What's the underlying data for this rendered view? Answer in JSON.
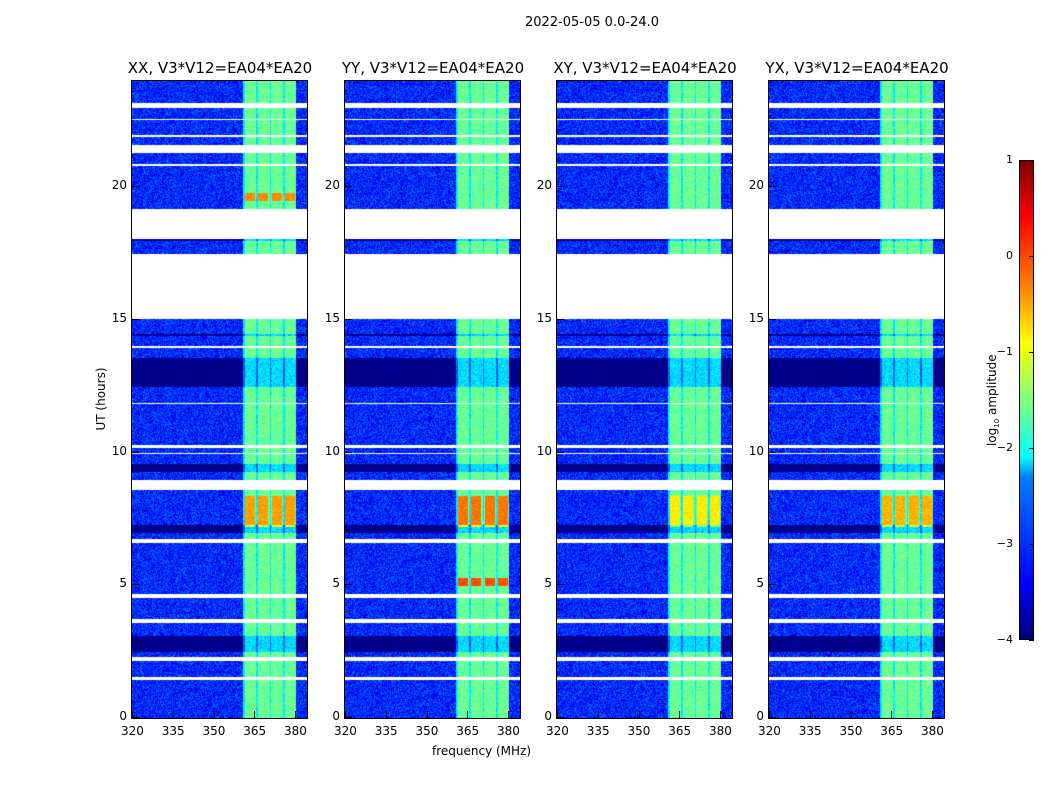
{
  "suptitle": "2022-05-05 0.0-24.0",
  "chart_data": {
    "type": "heatmap",
    "panels": [
      {
        "title": "XX, V3*V12=EA04*EA20",
        "hot_rows": [
          [
            7.2,
            8.4,
            -0.4
          ],
          [
            19.5,
            19.8,
            -0.3
          ]
        ]
      },
      {
        "title": "YY, V3*V12=EA04*EA20",
        "hot_rows": [
          [
            7.2,
            8.4,
            -0.2
          ],
          [
            5.0,
            5.3,
            0.0
          ]
        ]
      },
      {
        "title": "XY, V3*V12=EA04*EA20",
        "hot_rows": [
          [
            7.2,
            8.4,
            -0.8
          ]
        ]
      },
      {
        "title": "YX, V3*V12=EA04*EA20",
        "hot_rows": [
          [
            7.2,
            8.4,
            -0.5
          ]
        ]
      }
    ],
    "xlabel": "frequency (MHz)",
    "ylabel": "UT (hours)",
    "xlim": [
      320,
      384.4
    ],
    "ylim": [
      0,
      24
    ],
    "xticks": [
      "320",
      "335",
      "350",
      "365",
      "380"
    ],
    "xtick_values": [
      320,
      335,
      350,
      365,
      380
    ],
    "yticks": [
      "0",
      "5",
      "10",
      "15",
      "20"
    ],
    "ytick_values": [
      0,
      5,
      10,
      15,
      20
    ],
    "background_log_amp": -3.2,
    "signal_band_mhz": [
      360.7,
      380.3
    ],
    "signal_log_amp": -1.6,
    "flagged_hours": [
      [
        23.0,
        23.2
      ],
      [
        21.3,
        21.6
      ],
      [
        18.05,
        19.2
      ],
      [
        15.05,
        17.5
      ],
      [
        8.6,
        9.0
      ],
      [
        6.6,
        6.75
      ],
      [
        4.55,
        4.7
      ],
      [
        3.6,
        3.75
      ],
      [
        2.15,
        2.3
      ],
      [
        1.45,
        1.55
      ],
      [
        21.9,
        22.0
      ],
      [
        22.55,
        22.6
      ],
      [
        20.8,
        20.9
      ],
      [
        13.95,
        14.05
      ],
      [
        10.2,
        10.3
      ],
      [
        9.95,
        10.0
      ],
      [
        11.85,
        11.9
      ]
    ],
    "dark_hours": [
      [
        12.5,
        13.6
      ],
      [
        9.3,
        9.6
      ],
      [
        7.0,
        7.3
      ],
      [
        2.5,
        3.1
      ],
      [
        18.0,
        18.08
      ],
      [
        14.4,
        14.5
      ]
    ],
    "colorbar": {
      "label": "log10 amplitude",
      "label_main": "log",
      "label_sub": "10",
      "label_rest": " amplitude",
      "range": [
        -4,
        1
      ],
      "ticks": [
        "1",
        "0",
        "−1",
        "−2",
        "−3",
        "−4"
      ],
      "tick_values": [
        1,
        0,
        -1,
        -2,
        -3,
        -4
      ]
    }
  }
}
